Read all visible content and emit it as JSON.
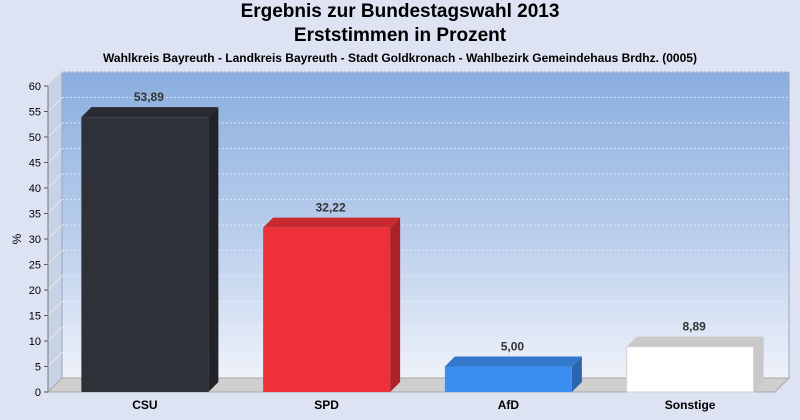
{
  "chart_data": {
    "type": "bar",
    "title_line1": "Ergebnis zur Bundestagswahl 2013",
    "title_line2": "Erststimmen in Prozent",
    "subtitle": "Wahlkreis Bayreuth - Landkreis Bayreuth - Stadt Goldkronach - Wahlbezirk Gemeindehaus Brdhz. (0005)",
    "ylabel": "%",
    "ylim": [
      0,
      60
    ],
    "yticks": [
      "0",
      "5",
      "10",
      "15",
      "20",
      "25",
      "30",
      "35",
      "40",
      "45",
      "50",
      "55",
      "60"
    ],
    "categories": [
      "CSU",
      "SPD",
      "AfD",
      "Sonstige"
    ],
    "values": [
      53.89,
      32.22,
      5.0,
      8.89
    ],
    "value_labels": [
      "53,89",
      "32,22",
      "5,00",
      "8,89"
    ],
    "colors": [
      "#2f3138",
      "#ee3038",
      "#3b8ef0",
      "#ffffff"
    ],
    "grid": true,
    "legend": "none"
  }
}
